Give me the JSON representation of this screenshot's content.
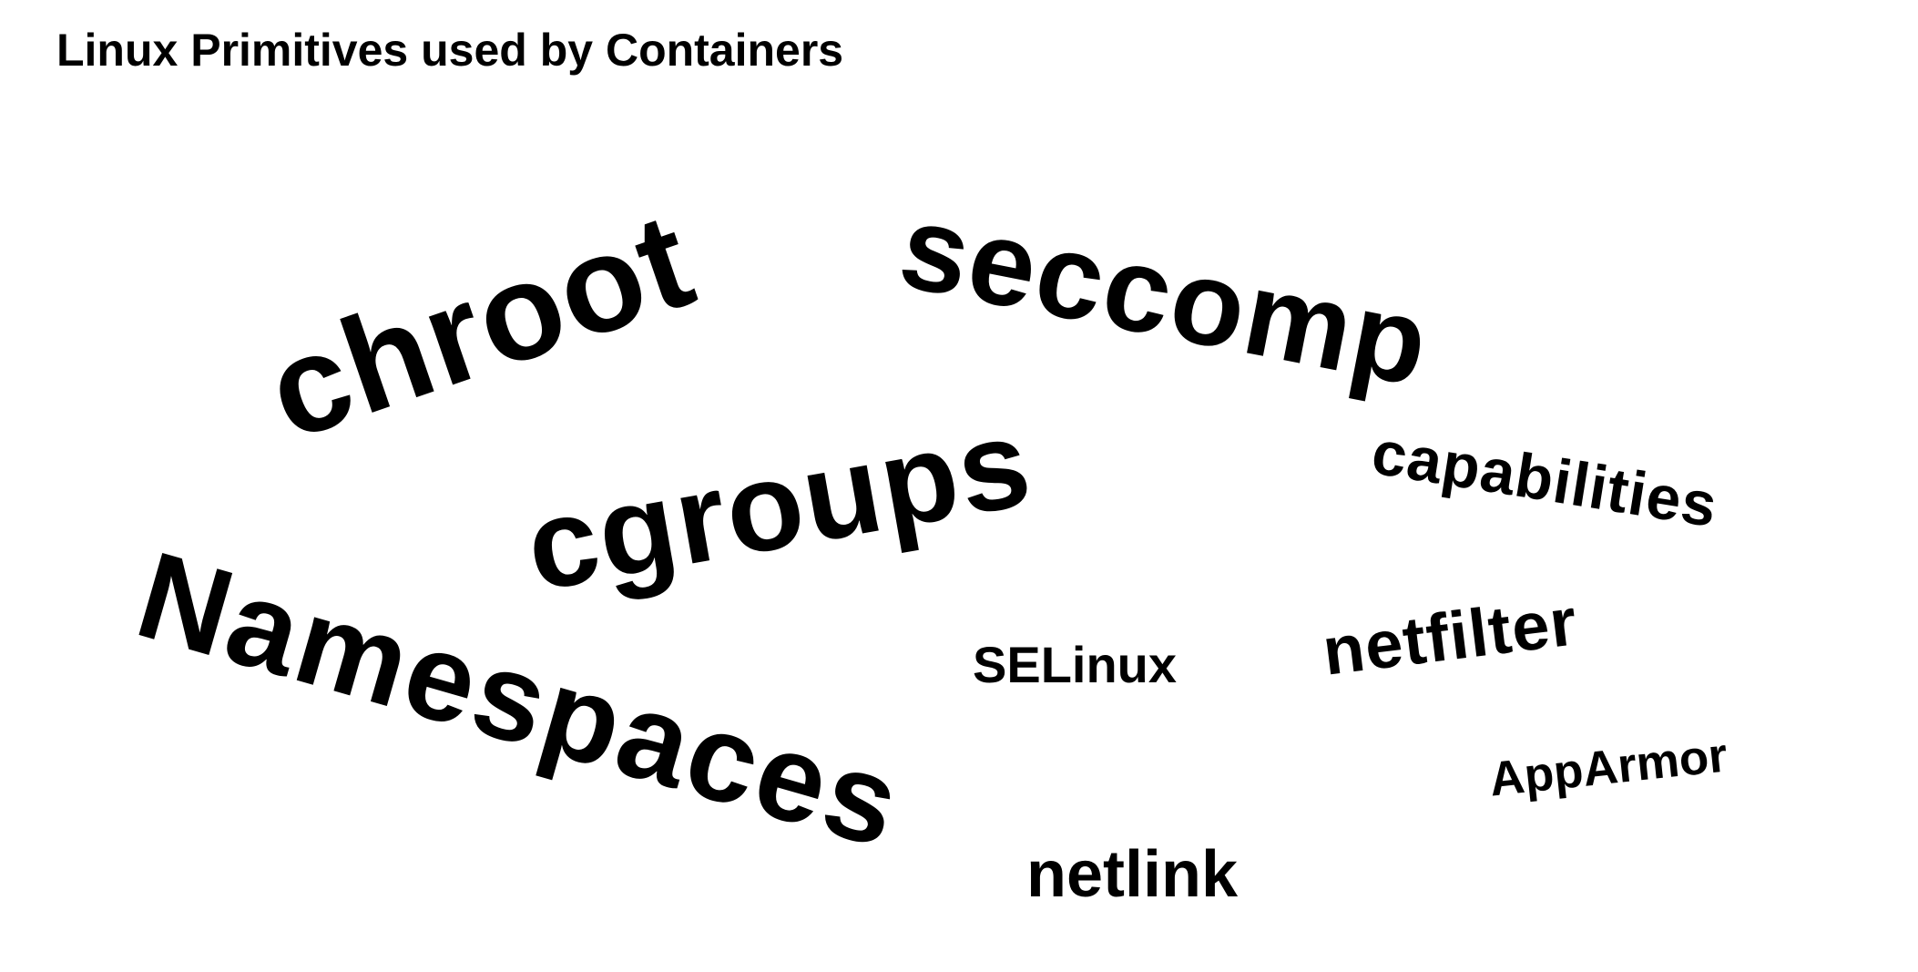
{
  "slide": {
    "title": "Linux Primitives used by Containers",
    "words": {
      "chroot": "chroot",
      "seccomp": "seccomp",
      "cgroups": "cgroups",
      "capabilities": "capabilities",
      "namespaces": "Namespaces",
      "selinux": "SELinux",
      "netfilter": "netfilter",
      "apparmor": "AppArmor",
      "netlink": "netlink"
    }
  }
}
